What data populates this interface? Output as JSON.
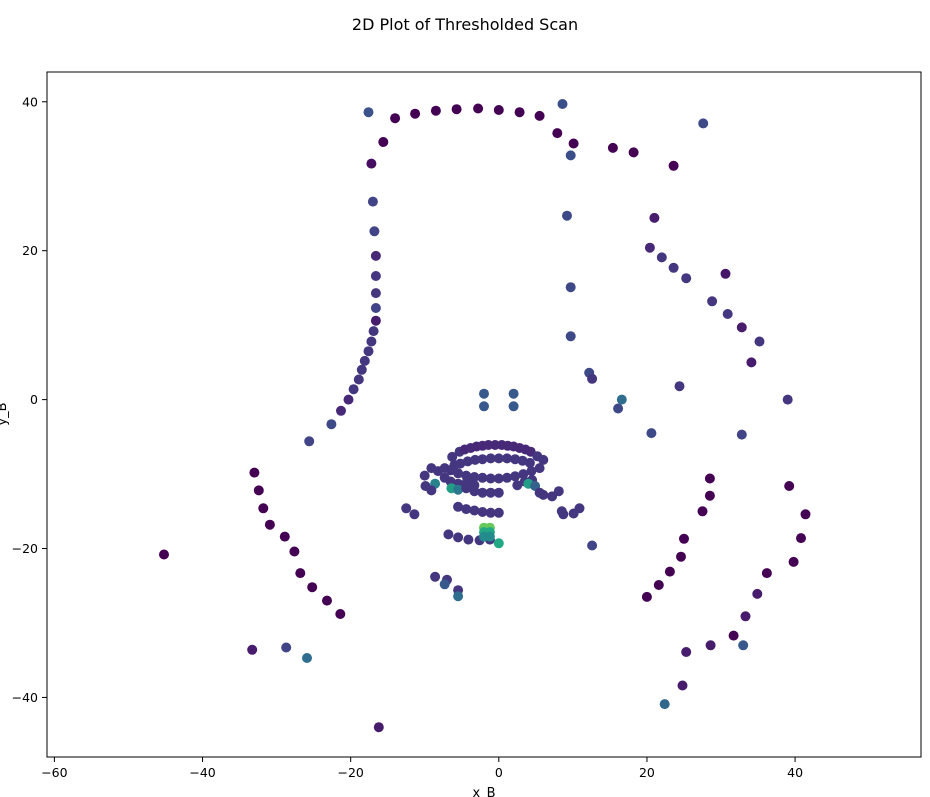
{
  "chart_data": {
    "type": "scatter",
    "title": "2D Plot of Thresholded Scan",
    "xlabel": "x_B",
    "ylabel": "y_B",
    "xlim": [
      -61,
      57
    ],
    "ylim": [
      -48,
      44
    ],
    "xticks": [
      -60,
      -40,
      -20,
      0,
      20,
      40
    ],
    "yticks": [
      -40,
      -20,
      0,
      20,
      40
    ],
    "grid": false,
    "colormap": "viridis",
    "points": [
      {
        "x": -17.6,
        "y": 38.6,
        "c": 0.32
      },
      {
        "x": -14.0,
        "y": 37.8,
        "c": 0.0
      },
      {
        "x": -11.3,
        "y": 38.4,
        "c": 0.0
      },
      {
        "x": -8.5,
        "y": 38.8,
        "c": 0.0
      },
      {
        "x": -5.7,
        "y": 39.0,
        "c": 0.0
      },
      {
        "x": -2.8,
        "y": 39.1,
        "c": 0.0
      },
      {
        "x": 0.0,
        "y": 38.9,
        "c": 0.0
      },
      {
        "x": 2.8,
        "y": 38.6,
        "c": 0.0
      },
      {
        "x": 5.5,
        "y": 38.1,
        "c": 0.0
      },
      {
        "x": 8.6,
        "y": 39.7,
        "c": 0.3
      },
      {
        "x": 7.9,
        "y": 35.8,
        "c": 0.0
      },
      {
        "x": 10.1,
        "y": 34.4,
        "c": 0.0
      },
      {
        "x": 9.7,
        "y": 32.8,
        "c": 0.3
      },
      {
        "x": -15.6,
        "y": 34.6,
        "c": 0.0
      },
      {
        "x": -17.2,
        "y": 31.7,
        "c": 0.05
      },
      {
        "x": 15.4,
        "y": 33.8,
        "c": 0.0
      },
      {
        "x": 18.2,
        "y": 33.2,
        "c": 0.0
      },
      {
        "x": 23.6,
        "y": 31.4,
        "c": 0.0
      },
      {
        "x": 27.6,
        "y": 37.1,
        "c": 0.28
      },
      {
        "x": -17.0,
        "y": 26.6,
        "c": 0.25
      },
      {
        "x": 9.2,
        "y": 24.7,
        "c": 0.28
      },
      {
        "x": 21.0,
        "y": 24.4,
        "c": 0.1
      },
      {
        "x": -16.8,
        "y": 22.6,
        "c": 0.25
      },
      {
        "x": 20.4,
        "y": 20.4,
        "c": 0.15
      },
      {
        "x": 22.0,
        "y": 19.1,
        "c": 0.2
      },
      {
        "x": -16.6,
        "y": 19.3,
        "c": 0.15
      },
      {
        "x": 23.6,
        "y": 17.7,
        "c": 0.2
      },
      {
        "x": 30.6,
        "y": 16.9,
        "c": 0.08
      },
      {
        "x": -16.6,
        "y": 16.6,
        "c": 0.2
      },
      {
        "x": 25.3,
        "y": 16.3,
        "c": 0.2
      },
      {
        "x": 9.7,
        "y": 15.1,
        "c": 0.28
      },
      {
        "x": -16.6,
        "y": 14.3,
        "c": 0.2
      },
      {
        "x": 28.8,
        "y": 13.2,
        "c": 0.2
      },
      {
        "x": -16.6,
        "y": 12.3,
        "c": 0.25
      },
      {
        "x": 30.9,
        "y": 11.5,
        "c": 0.2
      },
      {
        "x": -16.6,
        "y": 10.6,
        "c": 0.1
      },
      {
        "x": 32.8,
        "y": 9.7,
        "c": 0.1
      },
      {
        "x": -16.9,
        "y": 9.2,
        "c": 0.2
      },
      {
        "x": 9.7,
        "y": 8.5,
        "c": 0.28
      },
      {
        "x": -17.2,
        "y": 7.8,
        "c": 0.2
      },
      {
        "x": 35.2,
        "y": 7.8,
        "c": 0.2
      },
      {
        "x": -17.6,
        "y": 6.5,
        "c": 0.2
      },
      {
        "x": -18.1,
        "y": 5.2,
        "c": 0.2
      },
      {
        "x": 34.1,
        "y": 5.0,
        "c": 0.1
      },
      {
        "x": -18.5,
        "y": 4.0,
        "c": 0.2
      },
      {
        "x": 12.2,
        "y": 3.6,
        "c": 0.28
      },
      {
        "x": -18.9,
        "y": 2.7,
        "c": 0.2
      },
      {
        "x": 12.6,
        "y": 2.8,
        "c": 0.2
      },
      {
        "x": -19.6,
        "y": 1.4,
        "c": 0.2
      },
      {
        "x": 24.4,
        "y": 1.8,
        "c": 0.2
      },
      {
        "x": -2.0,
        "y": 0.8,
        "c": 0.35
      },
      {
        "x": 2.0,
        "y": 0.8,
        "c": 0.35
      },
      {
        "x": -20.3,
        "y": 0.0,
        "c": 0.15
      },
      {
        "x": 16.6,
        "y": 0.0,
        "c": 0.45
      },
      {
        "x": 39.0,
        "y": 0.0,
        "c": 0.2
      },
      {
        "x": -2.0,
        "y": -0.9,
        "c": 0.35
      },
      {
        "x": 2.0,
        "y": -0.9,
        "c": 0.35
      },
      {
        "x": 16.1,
        "y": -1.2,
        "c": 0.28
      },
      {
        "x": -21.3,
        "y": -1.5,
        "c": 0.15
      },
      {
        "x": -22.6,
        "y": -3.3,
        "c": 0.28
      },
      {
        "x": 20.6,
        "y": -4.5,
        "c": 0.28
      },
      {
        "x": 32.8,
        "y": -4.7,
        "c": 0.25
      },
      {
        "x": -25.6,
        "y": -5.6,
        "c": 0.25
      },
      {
        "x": -5.3,
        "y": -7.0,
        "c": 0.2
      },
      {
        "x": -4.6,
        "y": -6.7,
        "c": 0.15
      },
      {
        "x": -3.8,
        "y": -6.5,
        "c": 0.15
      },
      {
        "x": -3.0,
        "y": -6.3,
        "c": 0.15
      },
      {
        "x": -2.2,
        "y": -6.2,
        "c": 0.15
      },
      {
        "x": -1.4,
        "y": -6.1,
        "c": 0.15
      },
      {
        "x": -0.5,
        "y": -6.1,
        "c": 0.15
      },
      {
        "x": 0.4,
        "y": -6.1,
        "c": 0.15
      },
      {
        "x": 1.2,
        "y": -6.2,
        "c": 0.15
      },
      {
        "x": 2.0,
        "y": -6.3,
        "c": 0.15
      },
      {
        "x": 2.8,
        "y": -6.5,
        "c": 0.15
      },
      {
        "x": 3.6,
        "y": -6.7,
        "c": 0.15
      },
      {
        "x": 4.3,
        "y": -7.0,
        "c": 0.15
      },
      {
        "x": -6.3,
        "y": -7.7,
        "c": 0.2
      },
      {
        "x": 5.2,
        "y": -7.6,
        "c": 0.2
      },
      {
        "x": -6.0,
        "y": -8.8,
        "c": 0.2
      },
      {
        "x": -5.2,
        "y": -8.6,
        "c": 0.2
      },
      {
        "x": -4.2,
        "y": -8.3,
        "c": 0.2
      },
      {
        "x": -3.2,
        "y": -8.1,
        "c": 0.2
      },
      {
        "x": -2.2,
        "y": -8.0,
        "c": 0.2
      },
      {
        "x": -1.1,
        "y": -7.9,
        "c": 0.2
      },
      {
        "x": 0.0,
        "y": -7.9,
        "c": 0.2
      },
      {
        "x": 1.1,
        "y": -7.9,
        "c": 0.2
      },
      {
        "x": 2.2,
        "y": -8.0,
        "c": 0.2
      },
      {
        "x": 3.2,
        "y": -8.2,
        "c": 0.2
      },
      {
        "x": 4.2,
        "y": -8.5,
        "c": 0.2
      },
      {
        "x": 6.0,
        "y": -8.1,
        "c": 0.2
      },
      {
        "x": -7.3,
        "y": -9.2,
        "c": 0.2
      },
      {
        "x": -6.5,
        "y": -9.5,
        "c": 0.2
      },
      {
        "x": -5.5,
        "y": -9.9,
        "c": 0.2
      },
      {
        "x": -4.4,
        "y": -10.2,
        "c": 0.2
      },
      {
        "x": -3.3,
        "y": -10.4,
        "c": 0.2
      },
      {
        "x": -2.2,
        "y": -10.5,
        "c": 0.2
      },
      {
        "x": -1.1,
        "y": -10.6,
        "c": 0.2
      },
      {
        "x": 0.0,
        "y": -10.6,
        "c": 0.2
      },
      {
        "x": 1.1,
        "y": -10.5,
        "c": 0.2
      },
      {
        "x": 2.2,
        "y": -10.3,
        "c": 0.2
      },
      {
        "x": 3.3,
        "y": -10.0,
        "c": 0.2
      },
      {
        "x": 4.4,
        "y": -9.6,
        "c": 0.2
      },
      {
        "x": 5.5,
        "y": -9.2,
        "c": 0.2
      },
      {
        "x": -9.1,
        "y": -9.2,
        "c": 0.2
      },
      {
        "x": -8.2,
        "y": -9.6,
        "c": 0.2
      },
      {
        "x": -10.0,
        "y": -10.2,
        "c": 0.2
      },
      {
        "x": -7.3,
        "y": -10.5,
        "c": 0.2
      },
      {
        "x": -6.5,
        "y": -11.0,
        "c": 0.2
      },
      {
        "x": -5.5,
        "y": -11.3,
        "c": 0.2
      },
      {
        "x": -4.3,
        "y": -11.0,
        "c": 0.2
      },
      {
        "x": -3.3,
        "y": -11.5,
        "c": 0.2
      },
      {
        "x": 2.5,
        "y": -11.5,
        "c": 0.2
      },
      {
        "x": 3.5,
        "y": -11.0,
        "c": 0.2
      },
      {
        "x": 4.5,
        "y": -10.8,
        "c": 0.2
      },
      {
        "x": -9.9,
        "y": -11.6,
        "c": 0.2
      },
      {
        "x": -8.6,
        "y": -11.3,
        "c": 0.55
      },
      {
        "x": -9.1,
        "y": -12.2,
        "c": 0.2
      },
      {
        "x": -6.4,
        "y": -11.9,
        "c": 0.7
      },
      {
        "x": -5.5,
        "y": -12.1,
        "c": 0.5
      },
      {
        "x": -4.4,
        "y": -11.9,
        "c": 0.2
      },
      {
        "x": -3.3,
        "y": -12.3,
        "c": 0.2
      },
      {
        "x": -2.2,
        "y": -12.5,
        "c": 0.2
      },
      {
        "x": -1.1,
        "y": -12.5,
        "c": 0.2
      },
      {
        "x": 0.0,
        "y": -12.5,
        "c": 0.2
      },
      {
        "x": 4.0,
        "y": -11.3,
        "c": 0.7
      },
      {
        "x": 4.9,
        "y": -11.6,
        "c": 0.4
      },
      {
        "x": 5.5,
        "y": -12.5,
        "c": 0.2
      },
      {
        "x": 6.0,
        "y": -12.8,
        "c": 0.2
      },
      {
        "x": 7.2,
        "y": -13.0,
        "c": 0.2
      },
      {
        "x": 8.1,
        "y": -12.3,
        "c": 0.2
      },
      {
        "x": -12.5,
        "y": -14.6,
        "c": 0.2
      },
      {
        "x": -11.4,
        "y": -15.4,
        "c": 0.2
      },
      {
        "x": -5.5,
        "y": -14.4,
        "c": 0.2
      },
      {
        "x": -4.4,
        "y": -14.7,
        "c": 0.2
      },
      {
        "x": -3.3,
        "y": -14.9,
        "c": 0.2
      },
      {
        "x": -2.2,
        "y": -15.1,
        "c": 0.2
      },
      {
        "x": -1.1,
        "y": -15.2,
        "c": 0.2
      },
      {
        "x": 0.0,
        "y": -15.2,
        "c": 0.2
      },
      {
        "x": 8.5,
        "y": -15.0,
        "c": 0.2
      },
      {
        "x": 8.7,
        "y": -15.4,
        "c": 0.2
      },
      {
        "x": 10.1,
        "y": -15.3,
        "c": 0.2
      },
      {
        "x": 10.9,
        "y": -14.6,
        "c": 0.2
      },
      {
        "x": -6.8,
        "y": -18.1,
        "c": 0.2
      },
      {
        "x": -5.5,
        "y": -18.5,
        "c": 0.2
      },
      {
        "x": -4.1,
        "y": -18.8,
        "c": 0.2
      },
      {
        "x": -2.6,
        "y": -18.9,
        "c": 0.2
      },
      {
        "x": -1.2,
        "y": -18.8,
        "c": 0.2
      },
      {
        "x": -2.0,
        "y": -17.2,
        "c": 0.85
      },
      {
        "x": -1.2,
        "y": -17.2,
        "c": 0.85
      },
      {
        "x": -2.0,
        "y": -17.8,
        "c": 0.75
      },
      {
        "x": -1.2,
        "y": -17.8,
        "c": 0.75
      },
      {
        "x": -2.0,
        "y": -18.4,
        "c": 0.6
      },
      {
        "x": -1.2,
        "y": -18.4,
        "c": 0.6
      },
      {
        "x": 0.0,
        "y": -19.3,
        "c": 0.75
      },
      {
        "x": 12.6,
        "y": -19.6,
        "c": 0.25
      },
      {
        "x": -33.0,
        "y": -9.8,
        "c": 0.0
      },
      {
        "x": -32.4,
        "y": -12.2,
        "c": 0.0
      },
      {
        "x": -31.8,
        "y": -14.6,
        "c": 0.0
      },
      {
        "x": -30.9,
        "y": -16.8,
        "c": 0.0
      },
      {
        "x": -28.9,
        "y": -18.4,
        "c": 0.0
      },
      {
        "x": -27.6,
        "y": -20.4,
        "c": 0.0
      },
      {
        "x": -26.8,
        "y": -23.3,
        "c": 0.0
      },
      {
        "x": -25.2,
        "y": -25.2,
        "c": 0.0
      },
      {
        "x": -23.2,
        "y": -27.0,
        "c": 0.0
      },
      {
        "x": -21.4,
        "y": -28.8,
        "c": 0.0
      },
      {
        "x": -45.2,
        "y": -20.8,
        "c": 0.0
      },
      {
        "x": -8.6,
        "y": -23.8,
        "c": 0.2
      },
      {
        "x": -7.0,
        "y": -24.2,
        "c": 0.2
      },
      {
        "x": -7.3,
        "y": -24.8,
        "c": 0.35
      },
      {
        "x": -5.5,
        "y": -25.6,
        "c": 0.2
      },
      {
        "x": -5.5,
        "y": -26.4,
        "c": 0.45
      },
      {
        "x": -33.3,
        "y": -33.6,
        "c": 0.1
      },
      {
        "x": -28.7,
        "y": -33.3,
        "c": 0.25
      },
      {
        "x": -25.9,
        "y": -34.7,
        "c": 0.45
      },
      {
        "x": -16.2,
        "y": -44.0,
        "c": 0.1
      },
      {
        "x": 28.5,
        "y": -10.6,
        "c": 0.0
      },
      {
        "x": 28.5,
        "y": -12.9,
        "c": 0.0
      },
      {
        "x": 27.5,
        "y": -15.0,
        "c": 0.0
      },
      {
        "x": 25.0,
        "y": -18.7,
        "c": 0.0
      },
      {
        "x": 24.6,
        "y": -21.1,
        "c": 0.0
      },
      {
        "x": 23.1,
        "y": -23.1,
        "c": 0.0
      },
      {
        "x": 21.6,
        "y": -24.9,
        "c": 0.0
      },
      {
        "x": 20.0,
        "y": -26.5,
        "c": 0.0
      },
      {
        "x": 39.2,
        "y": -11.6,
        "c": 0.0
      },
      {
        "x": 41.4,
        "y": -15.4,
        "c": 0.0
      },
      {
        "x": 40.8,
        "y": -18.6,
        "c": 0.0
      },
      {
        "x": 39.8,
        "y": -21.8,
        "c": 0.0
      },
      {
        "x": 36.2,
        "y": -23.3,
        "c": 0.0
      },
      {
        "x": 34.9,
        "y": -26.1,
        "c": 0.1
      },
      {
        "x": 33.3,
        "y": -29.1,
        "c": 0.1
      },
      {
        "x": 31.7,
        "y": -31.7,
        "c": 0.0
      },
      {
        "x": 33.0,
        "y": -33.0,
        "c": 0.35
      },
      {
        "x": 28.6,
        "y": -33.0,
        "c": 0.1
      },
      {
        "x": 25.3,
        "y": -33.9,
        "c": 0.1
      },
      {
        "x": 24.8,
        "y": -38.4,
        "c": 0.1
      },
      {
        "x": 22.4,
        "y": -40.9,
        "c": 0.42
      }
    ]
  }
}
